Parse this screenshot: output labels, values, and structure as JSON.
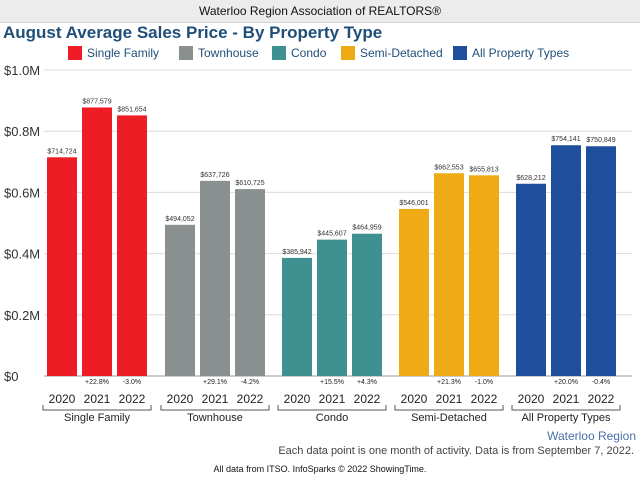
{
  "header": {
    "org": "Waterloo Region Association of REALTORS®"
  },
  "chart_data": {
    "type": "bar",
    "title": "August Average Sales Price - By Property Type",
    "ylabel": "",
    "xlabel": "",
    "ylim": [
      0,
      1000000
    ],
    "y_ticks": [
      0,
      200000,
      400000,
      600000,
      800000,
      1000000
    ],
    "y_tick_labels": [
      "$0",
      "$0.2M",
      "$0.4M",
      "$0.6M",
      "$0.8M",
      "$1.0M"
    ],
    "grid": true,
    "legend_position": "top",
    "groups": [
      {
        "name": "Single Family",
        "color": "#ee1c25",
        "years": [
          "2020",
          "2021",
          "2022"
        ],
        "values": [
          714724,
          877579,
          851654
        ],
        "labels": [
          "$714,724",
          "$877,579",
          "$851,654"
        ],
        "changes": [
          "",
          "+22.8%",
          "-3.0%"
        ]
      },
      {
        "name": "Townhouse",
        "color": "#8a9090",
        "years": [
          "2020",
          "2021",
          "2022"
        ],
        "values": [
          494052,
          637726,
          610725
        ],
        "labels": [
          "$494,052",
          "$637,726",
          "$610,725"
        ],
        "changes": [
          "",
          "+29.1%",
          "-4.2%"
        ]
      },
      {
        "name": "Condo",
        "color": "#3f9090",
        "years": [
          "2020",
          "2021",
          "2022"
        ],
        "values": [
          385942,
          445607,
          464959
        ],
        "labels": [
          "$385,942",
          "$445,607",
          "$464,959"
        ],
        "changes": [
          "",
          "+15.5%",
          "+4.3%"
        ]
      },
      {
        "name": "Semi-Detached",
        "color": "#efab16",
        "years": [
          "2020",
          "2021",
          "2022"
        ],
        "values": [
          546001,
          662553,
          655813
        ],
        "labels": [
          "$546,001",
          "$662,553",
          "$655,813"
        ],
        "changes": [
          "",
          "+21.3%",
          "-1.0%"
        ]
      },
      {
        "name": "All Property Types",
        "color": "#1f4f9c",
        "years": [
          "2020",
          "2021",
          "2022"
        ],
        "values": [
          628212,
          754141,
          750849
        ],
        "labels": [
          "$628,212",
          "$754,141",
          "$750,849"
        ],
        "changes": [
          "",
          "+20.0%",
          "-0.4%"
        ]
      }
    ]
  },
  "region_label": "Waterloo Region",
  "note": "Each data point is one month of activity. Data is from September 7, 2022.",
  "footer": "All data from ITSO. InfoSparks © 2022 ShowingTime."
}
